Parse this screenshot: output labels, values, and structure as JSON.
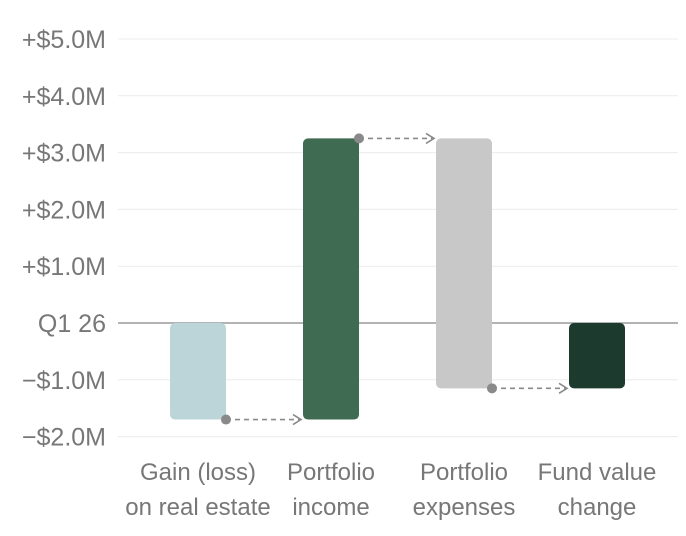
{
  "chart_data": {
    "type": "bar",
    "subtype": "waterfall",
    "categories": [
      [
        "Gain (loss)",
        "on real estate"
      ],
      [
        "Portfolio",
        "income"
      ],
      [
        "Portfolio",
        "expenses"
      ],
      [
        "Fund value",
        "change"
      ]
    ],
    "bars": [
      {
        "start": 0,
        "end": -1.7,
        "color": "#bcd5d8"
      },
      {
        "start": -1.7,
        "end": 3.25,
        "color": "#3f6b52"
      },
      {
        "start": 3.25,
        "end": -1.15,
        "color": "#c8c8c8"
      },
      {
        "start": 0,
        "end": -1.15,
        "color": "#1d3a2e"
      }
    ],
    "connectors": [
      {
        "from_bar": 0,
        "to_bar": 1,
        "value": -1.7
      },
      {
        "from_bar": 1,
        "to_bar": 2,
        "value": 3.25
      },
      {
        "from_bar": 2,
        "to_bar": 3,
        "value": -1.15
      }
    ],
    "y_ticks": [
      {
        "value": 5,
        "label": "+$5.0M"
      },
      {
        "value": 4,
        "label": "+$4.0M"
      },
      {
        "value": 3,
        "label": "+$3.0M"
      },
      {
        "value": 2,
        "label": "+$2.0M"
      },
      {
        "value": 1,
        "label": "+$1.0M"
      },
      {
        "value": 0,
        "label": "Q1 26"
      },
      {
        "value": -1,
        "label": "−$1.0M"
      },
      {
        "value": -2,
        "label": "−$2.0M"
      }
    ],
    "ylim": [
      -2,
      5
    ],
    "grid": true,
    "colors": {
      "gridline": "#ececec",
      "baseline": "#9a9a9a",
      "connector": "#8a8a8a",
      "text": "#777777"
    }
  }
}
